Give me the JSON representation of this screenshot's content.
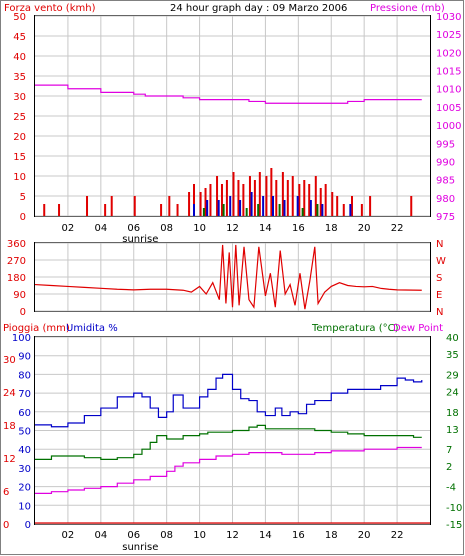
{
  "header": {
    "left_title": "Forza vento (kmh)",
    "center_title": "24 hour graph day : 09 Marzo 2006",
    "right_title": "Pressione (mb)"
  },
  "colors": {
    "red": "#e00000",
    "blue": "#0000c8",
    "green": "#007000",
    "magenta": "#e000e0",
    "grid": "#c8c8c8",
    "frame": "#000000"
  },
  "x_axis": {
    "ticks": [
      "02",
      "04",
      "06",
      "08",
      "10",
      "12",
      "14",
      "16",
      "18",
      "20",
      "22"
    ],
    "tick_hours": [
      2,
      4,
      6,
      8,
      10,
      12,
      14,
      16,
      18,
      20,
      22
    ],
    "sunrise_label": "sunrise",
    "sunrise_hour": 6.4
  },
  "chart_data": [
    {
      "type": "bar",
      "name": "wind",
      "ylabel_left": "Forza vento (kmh)",
      "ylabel_right": "Pressione (mb)",
      "ylim_left": [
        0,
        50
      ],
      "ylim_right": [
        975,
        1030
      ],
      "yticks_left": [
        0,
        5,
        10,
        15,
        20,
        25,
        30,
        35,
        40,
        45,
        50
      ],
      "yticks_right": [
        975,
        980,
        985,
        990,
        995,
        1000,
        1005,
        1010,
        1015,
        1020,
        1025,
        1030
      ],
      "gust_red": [
        [
          0.5,
          3
        ],
        [
          1.4,
          3
        ],
        [
          3.1,
          5
        ],
        [
          4.2,
          3
        ],
        [
          4.6,
          5
        ],
        [
          6.0,
          5
        ],
        [
          7.6,
          3
        ],
        [
          8.1,
          5
        ],
        [
          8.6,
          3
        ],
        [
          9.3,
          6
        ],
        [
          9.6,
          8
        ],
        [
          10.0,
          6
        ],
        [
          10.3,
          7
        ],
        [
          10.6,
          8
        ],
        [
          11.0,
          10
        ],
        [
          11.3,
          8
        ],
        [
          11.6,
          9
        ],
        [
          12.0,
          11
        ],
        [
          12.3,
          9
        ],
        [
          12.6,
          8
        ],
        [
          13.0,
          10
        ],
        [
          13.3,
          9
        ],
        [
          13.6,
          11
        ],
        [
          14.0,
          10
        ],
        [
          14.3,
          12
        ],
        [
          14.6,
          9
        ],
        [
          15.0,
          11
        ],
        [
          15.3,
          9
        ],
        [
          15.6,
          10
        ],
        [
          16.0,
          8
        ],
        [
          16.3,
          9
        ],
        [
          16.6,
          8
        ],
        [
          17.0,
          10
        ],
        [
          17.3,
          7
        ],
        [
          17.6,
          8
        ],
        [
          18.0,
          6
        ],
        [
          18.3,
          5
        ],
        [
          18.7,
          3
        ],
        [
          19.2,
          5
        ],
        [
          19.8,
          3
        ],
        [
          20.3,
          5
        ],
        [
          22.8,
          5
        ]
      ],
      "speed_blue": [
        [
          9.6,
          3
        ],
        [
          10.4,
          4
        ],
        [
          11.1,
          4
        ],
        [
          11.8,
          5
        ],
        [
          12.4,
          4
        ],
        [
          13.1,
          6
        ],
        [
          13.8,
          5
        ],
        [
          14.4,
          5
        ],
        [
          15.1,
          4
        ],
        [
          15.9,
          5
        ],
        [
          16.7,
          4
        ],
        [
          17.4,
          3
        ],
        [
          19.1,
          3
        ]
      ],
      "speed_green": [
        [
          10.2,
          2
        ],
        [
          11.4,
          3
        ],
        [
          12.8,
          2
        ],
        [
          13.5,
          3
        ],
        [
          14.8,
          3
        ],
        [
          16.2,
          2
        ],
        [
          17.1,
          3
        ]
      ],
      "pressure": [
        [
          0,
          1011
        ],
        [
          2,
          1010
        ],
        [
          4,
          1009
        ],
        [
          6,
          1008.5
        ],
        [
          6.7,
          1008
        ],
        [
          8,
          1008
        ],
        [
          9,
          1007.5
        ],
        [
          10,
          1007
        ],
        [
          11,
          1007
        ],
        [
          12,
          1007
        ],
        [
          13,
          1006.5
        ],
        [
          14,
          1006
        ],
        [
          16,
          1006
        ],
        [
          18,
          1006
        ],
        [
          19,
          1006.5
        ],
        [
          20,
          1007
        ],
        [
          22,
          1007
        ],
        [
          23.5,
          1007
        ]
      ]
    },
    {
      "type": "line",
      "name": "direction",
      "ylim": [
        0,
        360
      ],
      "yticks_left": [
        0,
        90,
        180,
        270,
        360
      ],
      "yticks_right": [
        "N",
        "E",
        "S",
        "W",
        "N"
      ],
      "direction": [
        [
          0,
          140
        ],
        [
          1,
          135
        ],
        [
          2,
          130
        ],
        [
          3,
          125
        ],
        [
          4,
          120
        ],
        [
          5,
          115
        ],
        [
          6,
          112
        ],
        [
          7,
          115
        ],
        [
          8,
          115
        ],
        [
          9,
          110
        ],
        [
          9.5,
          100
        ],
        [
          10,
          130
        ],
        [
          10.4,
          90
        ],
        [
          10.8,
          150
        ],
        [
          11.2,
          60
        ],
        [
          11.4,
          350
        ],
        [
          11.6,
          40
        ],
        [
          11.8,
          310
        ],
        [
          12.0,
          20
        ],
        [
          12.2,
          350
        ],
        [
          12.4,
          30
        ],
        [
          12.7,
          340
        ],
        [
          13.0,
          60
        ],
        [
          13.3,
          20
        ],
        [
          13.6,
          340
        ],
        [
          14.0,
          80
        ],
        [
          14.3,
          200
        ],
        [
          14.6,
          20
        ],
        [
          14.9,
          320
        ],
        [
          15.2,
          90
        ],
        [
          15.5,
          140
        ],
        [
          15.8,
          30
        ],
        [
          16.1,
          200
        ],
        [
          16.4,
          10
        ],
        [
          16.7,
          160
        ],
        [
          17.0,
          340
        ],
        [
          17.2,
          40
        ],
        [
          17.6,
          100
        ],
        [
          18.0,
          130
        ],
        [
          18.5,
          150
        ],
        [
          19.0,
          135
        ],
        [
          19.5,
          130
        ],
        [
          20.0,
          128
        ],
        [
          20.5,
          130
        ],
        [
          21.0,
          120
        ],
        [
          21.5,
          115
        ],
        [
          22.0,
          112
        ],
        [
          23.5,
          110
        ]
      ]
    },
    {
      "type": "line",
      "name": "weather",
      "left_labels": [
        "Pioggia (mm)",
        "Umidita %"
      ],
      "right_labels": [
        "Temperatura (°C)",
        "Dew Point"
      ],
      "ylim_humidity": [
        0,
        100
      ],
      "ylim_temp": [
        -15,
        40
      ],
      "yticks_humidity": [
        0,
        10,
        20,
        30,
        40,
        50,
        60,
        70,
        80,
        90,
        100
      ],
      "yticks_rain": [
        0,
        6,
        12,
        18,
        24,
        30
      ],
      "yticks_temp": [
        -15,
        -10,
        -4,
        2,
        7,
        13,
        18,
        24,
        29,
        35,
        40
      ],
      "humidity": [
        [
          0,
          53
        ],
        [
          1,
          52
        ],
        [
          2,
          54
        ],
        [
          3,
          58
        ],
        [
          4,
          62
        ],
        [
          5,
          68
        ],
        [
          6,
          70
        ],
        [
          6.5,
          68
        ],
        [
          7,
          62
        ],
        [
          7.5,
          57
        ],
        [
          8,
          60
        ],
        [
          8.4,
          69
        ],
        [
          9,
          62
        ],
        [
          10,
          68
        ],
        [
          10.5,
          72
        ],
        [
          11,
          78
        ],
        [
          11.4,
          80
        ],
        [
          12,
          72
        ],
        [
          12.5,
          67
        ],
        [
          13,
          66
        ],
        [
          13.5,
          60
        ],
        [
          14,
          58
        ],
        [
          14.6,
          62
        ],
        [
          15,
          58
        ],
        [
          15.5,
          60
        ],
        [
          16,
          59
        ],
        [
          16.5,
          64
        ],
        [
          17,
          66
        ],
        [
          18,
          70
        ],
        [
          19,
          72
        ],
        [
          20,
          72
        ],
        [
          21,
          74
        ],
        [
          22,
          78
        ],
        [
          22.5,
          77
        ],
        [
          23,
          76
        ],
        [
          23.5,
          77
        ]
      ],
      "temperature": [
        [
          0,
          4
        ],
        [
          1,
          5
        ],
        [
          2,
          5
        ],
        [
          3,
          4.5
        ],
        [
          4,
          4
        ],
        [
          5,
          4.5
        ],
        [
          6,
          5.5
        ],
        [
          6.5,
          7
        ],
        [
          7,
          9
        ],
        [
          7.4,
          11
        ],
        [
          8,
          10
        ],
        [
          8.5,
          10
        ],
        [
          9,
          11
        ],
        [
          10,
          11.5
        ],
        [
          10.5,
          12
        ],
        [
          11,
          12
        ],
        [
          12,
          12.5
        ],
        [
          13,
          13.5
        ],
        [
          13.5,
          14
        ],
        [
          14,
          13
        ],
        [
          15,
          13
        ],
        [
          16,
          13
        ],
        [
          17,
          12.5
        ],
        [
          18,
          12
        ],
        [
          19,
          11.5
        ],
        [
          20,
          11
        ],
        [
          21,
          11
        ],
        [
          22,
          11
        ],
        [
          23,
          10.5
        ],
        [
          23.5,
          10.5
        ]
      ],
      "dew_point": [
        [
          0,
          -6
        ],
        [
          1,
          -5.5
        ],
        [
          2,
          -5
        ],
        [
          3,
          -4.5
        ],
        [
          4,
          -4
        ],
        [
          5,
          -3
        ],
        [
          6,
          -2
        ],
        [
          7,
          -1
        ],
        [
          8,
          0.5
        ],
        [
          8.5,
          2
        ],
        [
          9,
          3
        ],
        [
          10,
          4
        ],
        [
          11,
          5
        ],
        [
          12,
          5.5
        ],
        [
          13,
          6
        ],
        [
          14,
          6
        ],
        [
          15,
          5.5
        ],
        [
          16,
          5.5
        ],
        [
          17,
          6
        ],
        [
          18,
          6.5
        ],
        [
          19,
          6.5
        ],
        [
          20,
          7
        ],
        [
          21,
          7
        ],
        [
          22,
          7.5
        ],
        [
          23,
          7.5
        ],
        [
          23.5,
          7.5
        ]
      ],
      "rain": 0
    }
  ]
}
